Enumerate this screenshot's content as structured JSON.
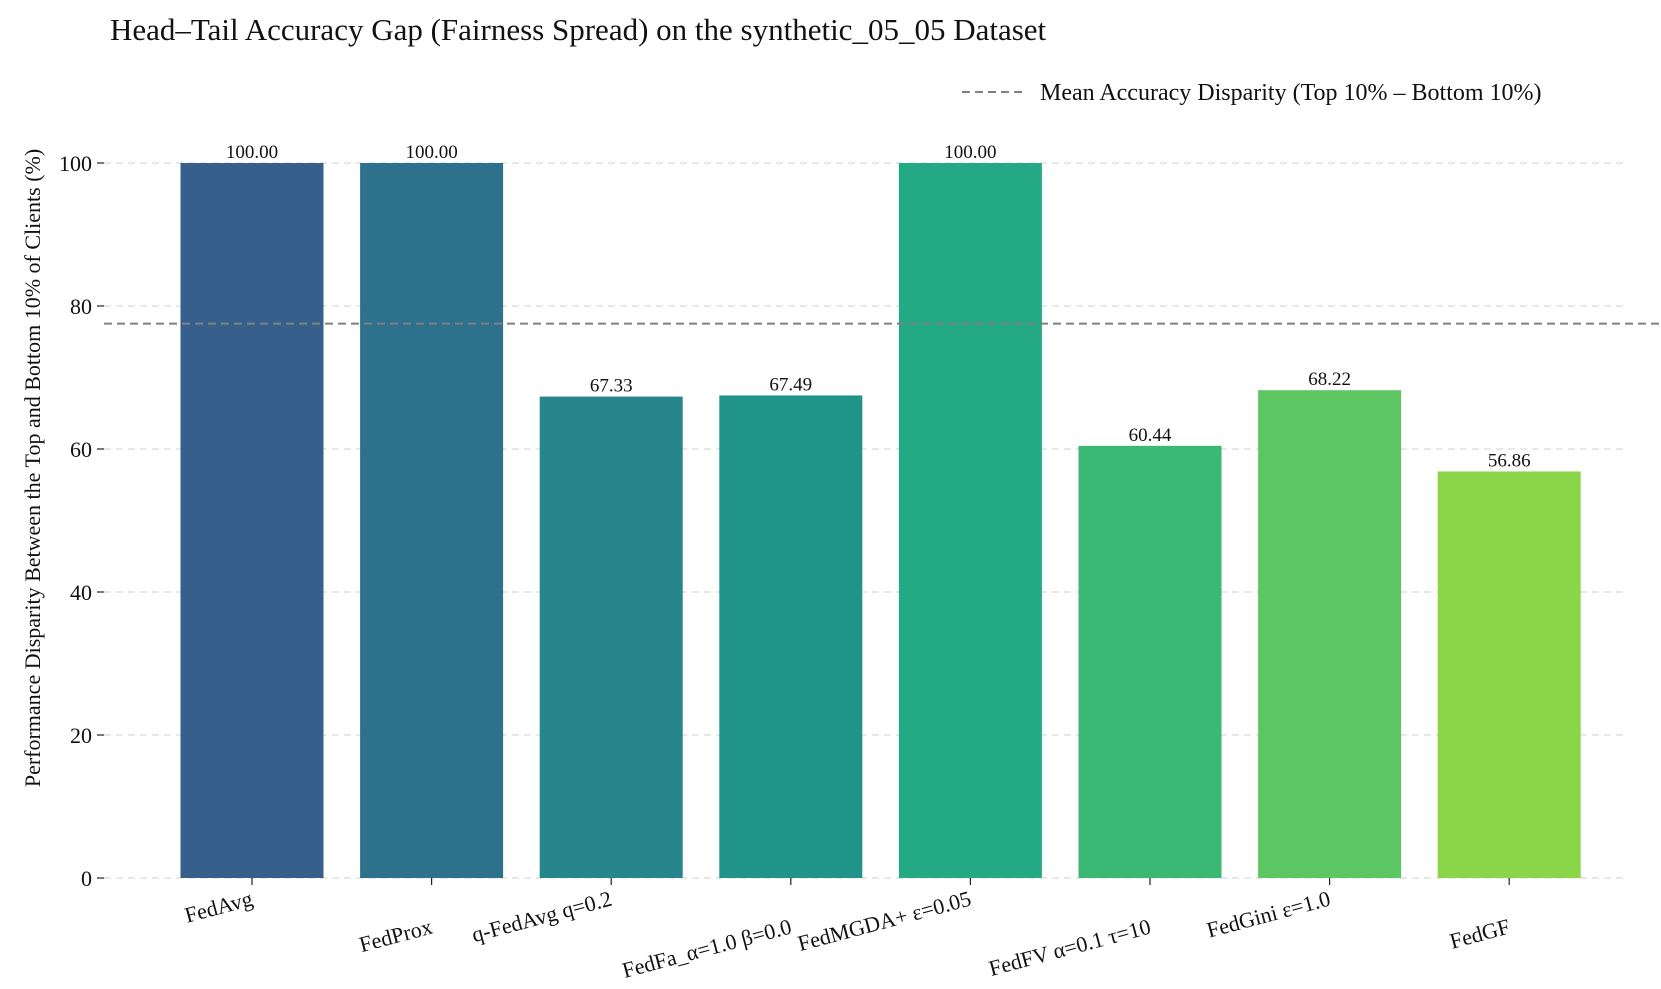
{
  "chart_data": {
    "type": "bar",
    "title": "Head–Tail Accuracy Gap (Fairness Spread) on the synthetic_05_05 Dataset",
    "xlabel": "",
    "ylabel": "Performance Disparity Between the Top and Bottom 10% of Clients (%)",
    "ylim": [
      0,
      100
    ],
    "yticks": [
      0,
      20,
      40,
      60,
      80,
      100
    ],
    "grid": "y-dashed",
    "legend_position": "top-right",
    "categories": [
      "FedAvg",
      "FedProx",
      "q-FedAvg q=0.2",
      "FedFa_α=1.0 β=0.0",
      "FedMGDA+ ε=0.05",
      "FedFV α=0.1 τ=10",
      "FedGini ε=1.0",
      "FedGF"
    ],
    "values": [
      100.0,
      100.0,
      67.33,
      67.49,
      100.0,
      60.44,
      68.22,
      56.86
    ],
    "value_labels": [
      "100.00",
      "100.00",
      "67.33",
      "67.49",
      "100.00",
      "60.44",
      "68.22",
      "56.86"
    ],
    "bar_colors": [
      "#365f8b",
      "#2e718c",
      "#26868c",
      "#21948a",
      "#23a983",
      "#3bb874",
      "#5cc663",
      "#8ad548"
    ],
    "reference_line": {
      "label": "Mean Accuracy Disparity (Top 10% – Bottom 10%)",
      "value": 77.54,
      "color": "#808080",
      "style": "dashed"
    }
  }
}
